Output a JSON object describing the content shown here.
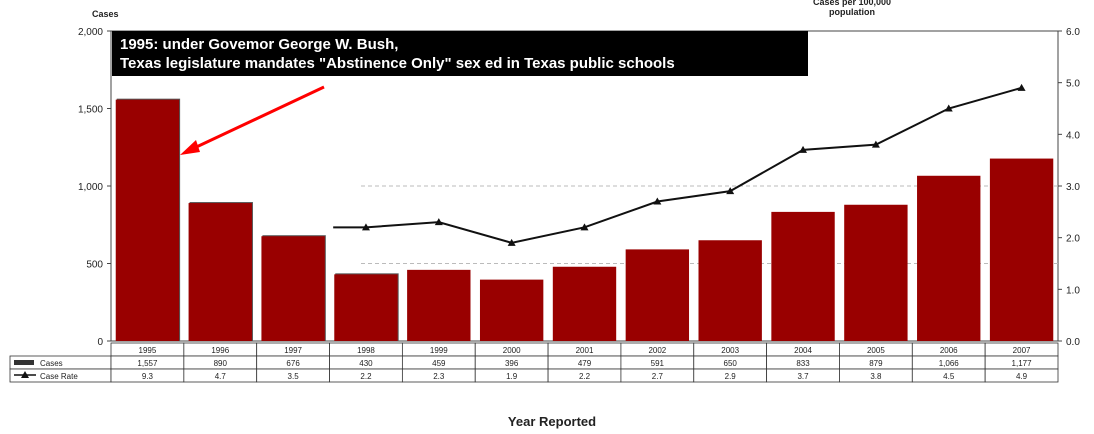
{
  "chart_data": {
    "type": "bar",
    "categories": [
      "1995",
      "1996",
      "1997",
      "1998",
      "1999",
      "2000",
      "2001",
      "2002",
      "2003",
      "2004",
      "2005",
      "2006",
      "2007"
    ],
    "series": [
      {
        "name": "Cases",
        "type": "bar",
        "axis": "left",
        "color": "#990000",
        "values": [
          1557,
          890,
          676,
          430,
          459,
          396,
          479,
          591,
          650,
          833,
          879,
          1066,
          1177
        ]
      },
      {
        "name": "Case Rate",
        "type": "line",
        "axis": "right",
        "color": "#111111",
        "values": [
          null,
          null,
          null,
          2.2,
          2.3,
          1.9,
          2.2,
          2.7,
          2.9,
          3.7,
          3.8,
          4.5,
          4.9
        ]
      }
    ],
    "table_rows": [
      {
        "label": "Cases",
        "values": [
          "1,557",
          "890",
          "676",
          "430",
          "459",
          "396",
          "479",
          "591",
          "650",
          "833",
          "879",
          "1,066",
          "1,177"
        ]
      },
      {
        "label": "Case Rate",
        "values": [
          "9.3",
          "4.7",
          "3.5",
          "2.2",
          "2.3",
          "1.9",
          "2.2",
          "2.7",
          "2.9",
          "3.7",
          "3.8",
          "4.5",
          "4.9"
        ]
      }
    ],
    "ylabel_left": "Cases",
    "ylabel_right": "Cases per 100,000\npopulation",
    "ylim_left": [
      0,
      2000
    ],
    "ylim_right": [
      0,
      6.0
    ],
    "yticks_left": [
      "0",
      "500",
      "1,000",
      "1,500",
      "2,000"
    ],
    "yticks_right": [
      "0.0",
      "1.0",
      "2.0",
      "3.0",
      "4.0",
      "5.0",
      "6.0"
    ],
    "xlabel": "Year Reported",
    "annotation": {
      "line1": "1995: under Govemor George W. Bush,",
      "line2": "Texas legislature mandates \"Abstinence Only\" sex ed in Texas public schools",
      "arrow_color": "#ff0000"
    }
  }
}
